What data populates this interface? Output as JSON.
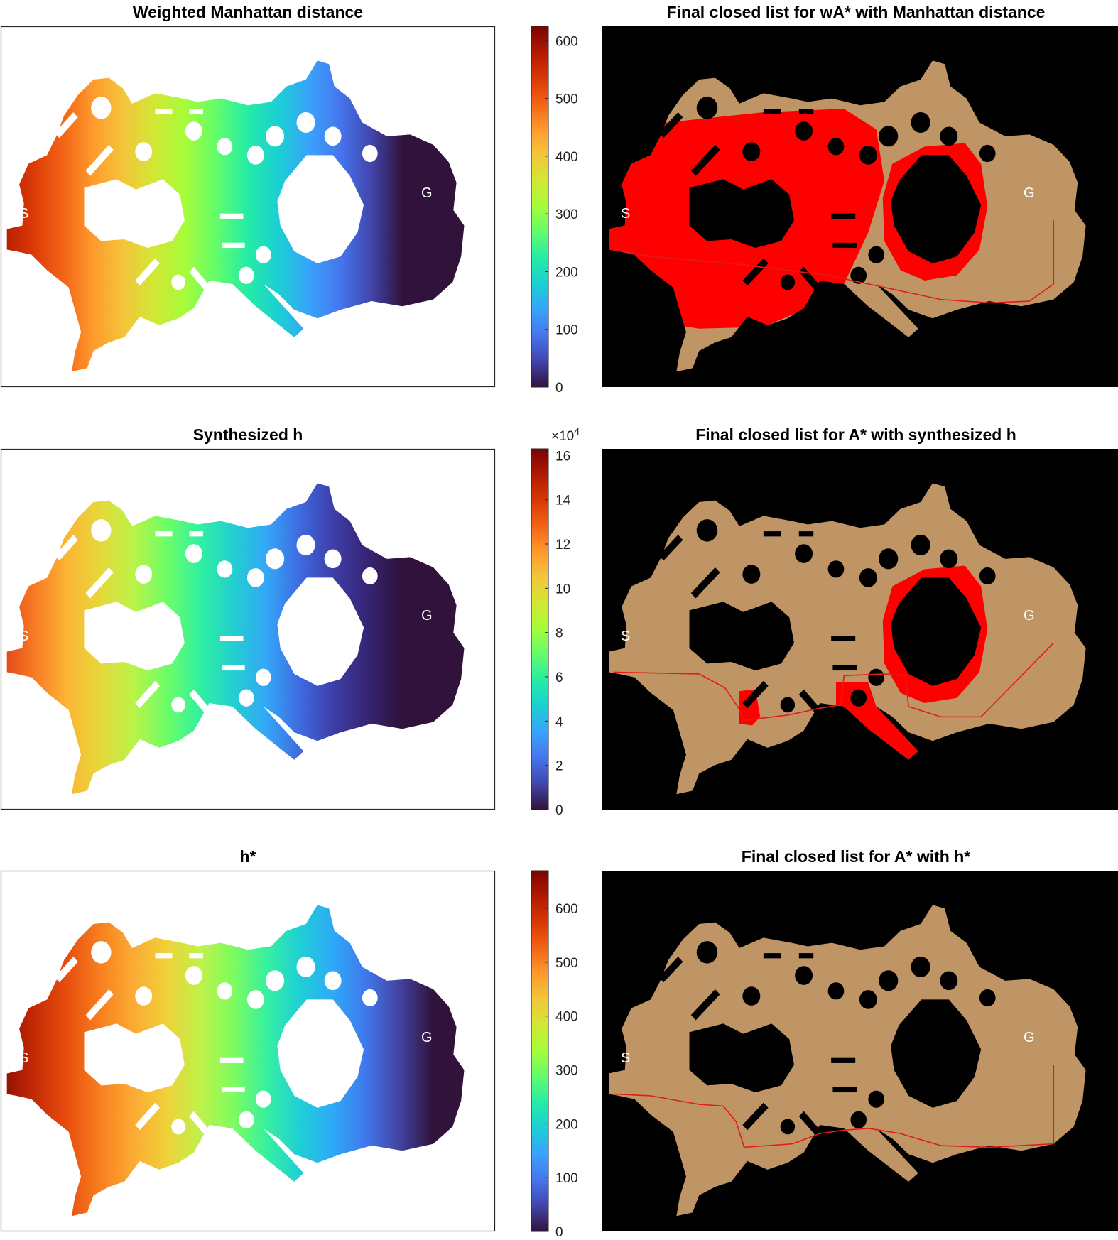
{
  "chart_data": [
    {
      "type": "heatmap",
      "title": "Weighted Manhattan distance",
      "start_label": "S",
      "goal_label": "G",
      "colorbar": {
        "colormap": "turbo",
        "range": [
          0,
          625
        ],
        "ticks": [
          "0",
          "100",
          "200",
          "300",
          "400",
          "500",
          "600"
        ],
        "tick_values": [
          0,
          100,
          200,
          300,
          400,
          500,
          600
        ],
        "exponent_label": ""
      },
      "gradient": "horizontal-from-goal"
    },
    {
      "type": "heatmap",
      "title": "Final closed list for wA* with Manhattan distance",
      "start_label": "S",
      "goal_label": "G",
      "background": "#000000",
      "free_color": "#c09565",
      "closed_color": "#ff0000",
      "path_color": "#e21b1b",
      "closed_regions": [
        "west-half-large-sweep",
        "east-wing-interior"
      ]
    },
    {
      "type": "heatmap",
      "title": "Synthesized h",
      "start_label": "S",
      "goal_label": "G",
      "colorbar": {
        "colormap": "turbo",
        "range": [
          0,
          16.3
        ],
        "ticks": [
          "0",
          "2",
          "4",
          "6",
          "8",
          "10",
          "12",
          "14",
          "16"
        ],
        "tick_values": [
          0,
          2,
          4,
          6,
          8,
          10,
          12,
          14,
          16
        ],
        "exponent_label": "×10",
        "exponent_power": "4"
      },
      "gradient": "horizontal-from-goal-steep"
    },
    {
      "type": "heatmap",
      "title": "Final closed list for A* with synthesized h",
      "start_label": "S",
      "goal_label": "G",
      "background": "#000000",
      "free_color": "#c09565",
      "closed_color": "#ff0000",
      "path_color": "#e21b1b",
      "closed_regions": [
        "central-corridor-strips",
        "east-wing-interior"
      ]
    },
    {
      "type": "heatmap",
      "title": "h*",
      "start_label": "S",
      "goal_label": "G",
      "colorbar": {
        "colormap": "turbo",
        "range": [
          0,
          670
        ],
        "ticks": [
          "0",
          "100",
          "200",
          "300",
          "400",
          "500",
          "600"
        ],
        "tick_values": [
          0,
          100,
          200,
          300,
          400,
          500,
          600
        ],
        "exponent_label": ""
      },
      "gradient": "geodesic-from-goal"
    },
    {
      "type": "heatmap",
      "title": "Final closed list for A* with h*",
      "start_label": "S",
      "goal_label": "G",
      "background": "#000000",
      "free_color": "#c09565",
      "closed_color": "#ff0000",
      "path_color": "#e21b1b",
      "closed_regions": []
    }
  ]
}
